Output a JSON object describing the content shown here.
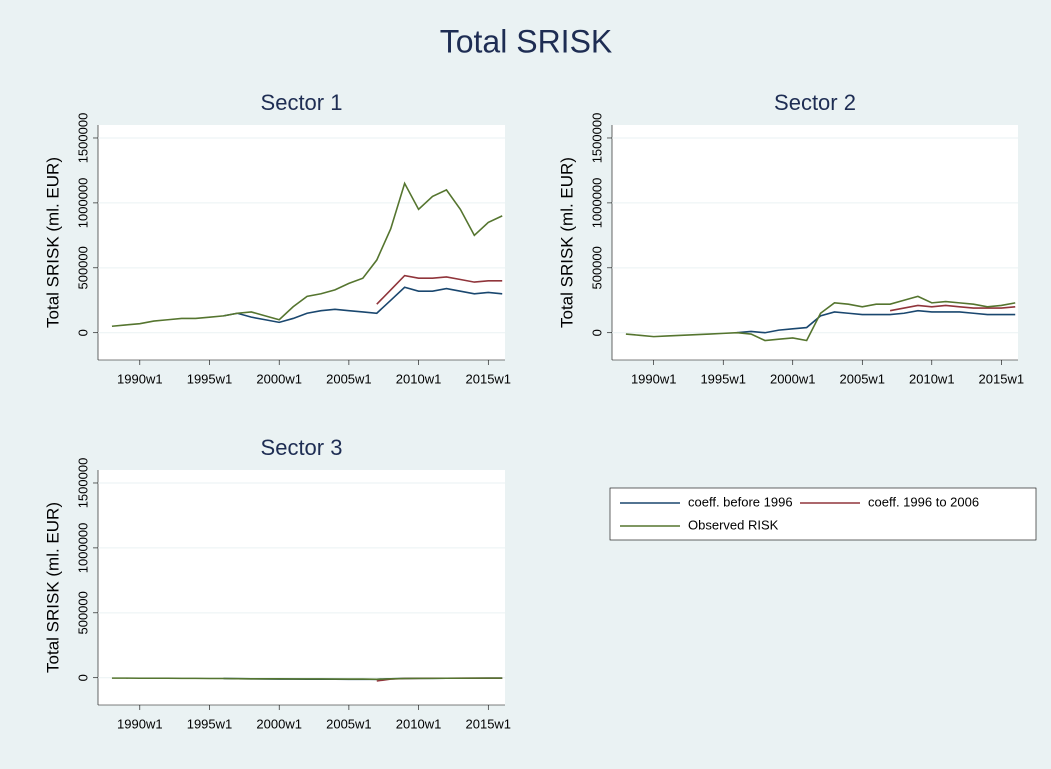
{
  "title": "Total SRISK",
  "chart_data": [
    {
      "type": "line",
      "title": "Sector 1",
      "y_label": "Total SRISK (ml. EUR)",
      "x": [
        1988,
        1989,
        1990,
        1991,
        1992,
        1993,
        1994,
        1995,
        1996,
        1997,
        1998,
        1999,
        2000,
        2001,
        2002,
        2003,
        2004,
        2005,
        2006,
        2007,
        2008,
        2009,
        2010,
        2011,
        2012,
        2013,
        2014,
        2015,
        2016
      ],
      "xlim": [
        1987,
        2016.2
      ],
      "ylim": [
        -210000,
        1600000
      ],
      "xticks": [
        {
          "value": 1990,
          "label": "1990w1"
        },
        {
          "value": 1995,
          "label": "1995w1"
        },
        {
          "value": 2000,
          "label": "2000w1"
        },
        {
          "value": 2005,
          "label": "2005w1"
        },
        {
          "value": 2010,
          "label": "2010w1"
        },
        {
          "value": 2015,
          "label": "2015w1"
        }
      ],
      "yticks": [
        0,
        500000,
        1000000,
        1500000
      ],
      "grid": true,
      "series": [
        {
          "name": "coeff. before 1996",
          "color": "#1a476f",
          "values": [
            null,
            null,
            null,
            null,
            null,
            null,
            null,
            null,
            130000,
            150000,
            120000,
            100000,
            80000,
            110000,
            150000,
            170000,
            180000,
            170000,
            160000,
            150000,
            250000,
            350000,
            320000,
            320000,
            340000,
            320000,
            300000,
            310000,
            300000
          ]
        },
        {
          "name": "coeff. 1996 to 2006",
          "color": "#90353b",
          "values": [
            null,
            null,
            null,
            null,
            null,
            null,
            null,
            null,
            null,
            null,
            null,
            null,
            null,
            null,
            null,
            null,
            null,
            null,
            null,
            220000,
            330000,
            440000,
            420000,
            420000,
            430000,
            410000,
            390000,
            400000,
            400000
          ]
        },
        {
          "name": "Observed RISK",
          "color": "#55752f",
          "values": [
            50000,
            60000,
            70000,
            90000,
            100000,
            110000,
            110000,
            120000,
            130000,
            150000,
            160000,
            130000,
            100000,
            200000,
            280000,
            300000,
            330000,
            380000,
            420000,
            560000,
            800000,
            1150000,
            950000,
            1050000,
            1100000,
            950000,
            750000,
            850000,
            900000
          ]
        }
      ]
    },
    {
      "type": "line",
      "title": "Sector 2",
      "y_label": "Total SRISK (ml. EUR)",
      "x": [
        1988,
        1989,
        1990,
        1991,
        1992,
        1993,
        1994,
        1995,
        1996,
        1997,
        1998,
        1999,
        2000,
        2001,
        2002,
        2003,
        2004,
        2005,
        2006,
        2007,
        2008,
        2009,
        2010,
        2011,
        2012,
        2013,
        2014,
        2015,
        2016
      ],
      "xlim": [
        1987,
        2016.2
      ],
      "ylim": [
        -210000,
        1600000
      ],
      "xticks": [
        {
          "value": 1990,
          "label": "1990w1"
        },
        {
          "value": 1995,
          "label": "1995w1"
        },
        {
          "value": 2000,
          "label": "2000w1"
        },
        {
          "value": 2005,
          "label": "2005w1"
        },
        {
          "value": 2010,
          "label": "2010w1"
        },
        {
          "value": 2015,
          "label": "2015w1"
        }
      ],
      "yticks": [
        0,
        500000,
        1000000,
        1500000
      ],
      "grid": true,
      "series": [
        {
          "name": "coeff. before 1996",
          "color": "#1a476f",
          "values": [
            null,
            null,
            null,
            null,
            null,
            null,
            null,
            null,
            0,
            10000,
            0,
            20000,
            30000,
            40000,
            130000,
            160000,
            150000,
            140000,
            140000,
            140000,
            150000,
            170000,
            160000,
            160000,
            160000,
            150000,
            140000,
            140000,
            140000
          ]
        },
        {
          "name": "coeff. 1996 to 2006",
          "color": "#90353b",
          "values": [
            null,
            null,
            null,
            null,
            null,
            null,
            null,
            null,
            null,
            null,
            null,
            null,
            null,
            null,
            null,
            null,
            null,
            null,
            null,
            170000,
            190000,
            210000,
            200000,
            210000,
            200000,
            190000,
            190000,
            190000,
            200000
          ]
        },
        {
          "name": "Observed RISK",
          "color": "#55752f",
          "values": [
            -10000,
            -20000,
            -30000,
            -25000,
            -20000,
            -15000,
            -10000,
            -5000,
            0,
            -10000,
            -60000,
            -50000,
            -40000,
            -60000,
            150000,
            230000,
            220000,
            200000,
            220000,
            220000,
            250000,
            280000,
            230000,
            240000,
            230000,
            220000,
            200000,
            210000,
            230000
          ]
        }
      ]
    },
    {
      "type": "line",
      "title": "Sector 3",
      "y_label": "Total SRISK (ml. EUR)",
      "x": [
        1988,
        1989,
        1990,
        1991,
        1992,
        1993,
        1994,
        1995,
        1996,
        1997,
        1998,
        1999,
        2000,
        2001,
        2002,
        2003,
        2004,
        2005,
        2006,
        2007,
        2008,
        2009,
        2010,
        2011,
        2012,
        2013,
        2014,
        2015,
        2016
      ],
      "xlim": [
        1987,
        2016.2
      ],
      "ylim": [
        -210000,
        1600000
      ],
      "xticks": [
        {
          "value": 1990,
          "label": "1990w1"
        },
        {
          "value": 1995,
          "label": "1995w1"
        },
        {
          "value": 2000,
          "label": "2000w1"
        },
        {
          "value": 2005,
          "label": "2005w1"
        },
        {
          "value": 2010,
          "label": "2010w1"
        },
        {
          "value": 2015,
          "label": "2015w1"
        }
      ],
      "yticks": [
        0,
        500000,
        1000000,
        1500000
      ],
      "grid": true,
      "series": [
        {
          "name": "coeff. before 1996",
          "color": "#1a476f",
          "values": [
            null,
            null,
            null,
            null,
            null,
            null,
            null,
            null,
            -6000,
            -7000,
            -8000,
            -9000,
            -10000,
            -10000,
            -11000,
            -11000,
            -11000,
            -12000,
            -12000,
            -12000,
            -8000,
            -6000,
            -5000,
            -5000,
            -4000,
            -4000,
            -4000,
            -3000,
            -3000
          ]
        },
        {
          "name": "coeff. 1996 to 2006",
          "color": "#90353b",
          "values": [
            null,
            null,
            null,
            null,
            null,
            null,
            null,
            null,
            null,
            null,
            null,
            null,
            null,
            null,
            null,
            null,
            null,
            null,
            null,
            -25000,
            -10000,
            -6000,
            -5000,
            -4000,
            -4000,
            -3000,
            -3000,
            -3000,
            -3000
          ]
        },
        {
          "name": "Observed RISK",
          "color": "#55752f",
          "values": [
            -3000,
            -3000,
            -4000,
            -4000,
            -4000,
            -5000,
            -5000,
            -6000,
            -6000,
            -7000,
            -8000,
            -8000,
            -8000,
            -9000,
            -9000,
            -9000,
            -10000,
            -10000,
            -10000,
            -12000,
            -8000,
            -6000,
            -5000,
            -5000,
            -4000,
            -4000,
            -3000,
            -3000,
            -3000
          ]
        }
      ]
    }
  ]
}
